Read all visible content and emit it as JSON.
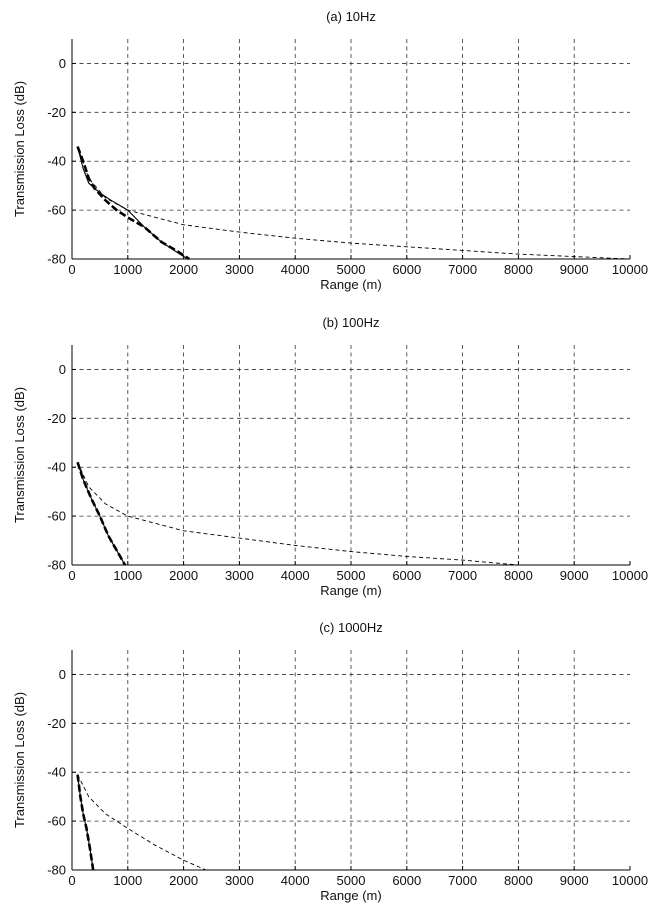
{
  "chart_data": [
    {
      "type": "line",
      "title": "(a) 10Hz",
      "xlabel": "Range (m)",
      "ylabel": "Transmission Loss (dB)",
      "xlim": [
        0,
        10000
      ],
      "ylim": [
        -80,
        10
      ],
      "xticks": [
        0,
        1000,
        2000,
        3000,
        4000,
        5000,
        6000,
        7000,
        8000,
        9000,
        10000
      ],
      "yticks": [
        0,
        -20,
        -40,
        -60,
        -80
      ],
      "grid": true,
      "series": [
        {
          "style": "solid",
          "x": [
            100,
            200,
            300,
            500,
            700,
            1000,
            1300,
            1600,
            2000,
            2100
          ],
          "y": [
            -34,
            -43,
            -49,
            -53,
            -56,
            -60,
            -67,
            -73,
            -79,
            -80
          ]
        },
        {
          "style": "bold-dashed",
          "x": [
            100,
            200,
            300,
            400,
            600,
            800,
            1000,
            1300,
            1600,
            1900,
            2100
          ],
          "y": [
            -34,
            -40,
            -47,
            -51,
            -56,
            -60,
            -63,
            -67,
            -73,
            -77,
            -80
          ]
        },
        {
          "style": "thin-dashed",
          "x": [
            100,
            300,
            600,
            1000,
            1500,
            2000,
            3000,
            4000,
            5000,
            6000,
            7000,
            8000,
            9000,
            10000
          ],
          "y": [
            -34,
            -47,
            -55,
            -60,
            -63,
            -66,
            -69,
            -71.5,
            -73.5,
            -75,
            -76.5,
            -78,
            -79,
            -80
          ]
        }
      ]
    },
    {
      "type": "line",
      "title": "(b) 100Hz",
      "xlabel": "Range (m)",
      "ylabel": "Transmission Loss (dB)",
      "xlim": [
        0,
        10000
      ],
      "ylim": [
        -80,
        10
      ],
      "xticks": [
        0,
        1000,
        2000,
        3000,
        4000,
        5000,
        6000,
        7000,
        8000,
        9000,
        10000
      ],
      "yticks": [
        0,
        -20,
        -40,
        -60,
        -80
      ],
      "grid": true,
      "series": [
        {
          "style": "solid",
          "x": [
            100,
            200,
            350,
            500,
            650,
            800,
            950
          ],
          "y": [
            -38,
            -45,
            -53,
            -60,
            -68,
            -74,
            -80
          ]
        },
        {
          "style": "bold-dashed",
          "x": [
            100,
            200,
            350,
            500,
            650,
            800,
            950
          ],
          "y": [
            -38,
            -45,
            -53,
            -60,
            -68,
            -74,
            -80
          ]
        },
        {
          "style": "thin-dashed",
          "x": [
            100,
            300,
            600,
            1000,
            1500,
            2000,
            3000,
            4000,
            5000,
            6000,
            7000,
            7500,
            8000,
            9000,
            10000
          ],
          "y": [
            -38,
            -48,
            -55,
            -60,
            -63,
            -66,
            -69,
            -72,
            -74.5,
            -76.5,
            -78,
            -79,
            -80,
            -80,
            -80
          ]
        }
      ]
    },
    {
      "type": "line",
      "title": "(c) 1000Hz",
      "xlabel": "Range (m)",
      "ylabel": "Transmission Loss (dB)",
      "xlim": [
        0,
        10000
      ],
      "ylim": [
        -80,
        10
      ],
      "xticks": [
        0,
        1000,
        2000,
        3000,
        4000,
        5000,
        6000,
        7000,
        8000,
        9000,
        10000
      ],
      "yticks": [
        0,
        -20,
        -40,
        -60,
        -80
      ],
      "grid": true,
      "series": [
        {
          "style": "solid",
          "x": [
            100,
            150,
            200,
            260,
            320,
            380
          ],
          "y": [
            -41,
            -50,
            -57,
            -63,
            -71,
            -80
          ]
        },
        {
          "style": "bold-dashed",
          "x": [
            100,
            150,
            200,
            260,
            320,
            380
          ],
          "y": [
            -41,
            -50,
            -57,
            -63,
            -71,
            -80
          ]
        },
        {
          "style": "thin-dashed",
          "x": [
            100,
            300,
            600,
            1000,
            1500,
            2000,
            2400
          ],
          "y": [
            -41,
            -50,
            -57,
            -63,
            -70,
            -76,
            -80
          ]
        }
      ]
    }
  ]
}
